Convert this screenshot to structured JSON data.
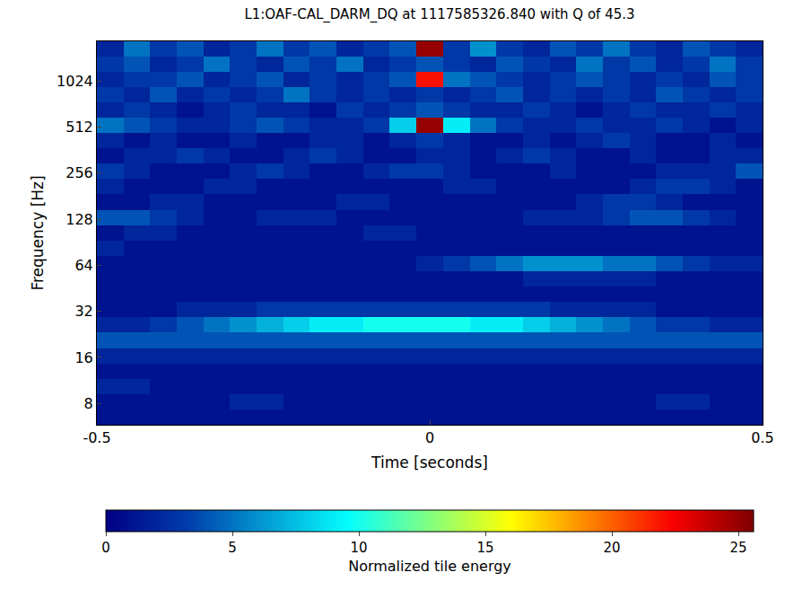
{
  "chart_data": {
    "type": "heatmap",
    "title": "L1:OAF-CAL_DARM_DQ at 1117585326.840 with Q of 45.3",
    "x_label": "Time [seconds]",
    "y_label": "Frequency [Hz]",
    "x": [
      -0.5,
      -0.46,
      -0.42,
      -0.38,
      -0.34,
      -0.3,
      -0.26,
      -0.22,
      -0.18,
      -0.14,
      -0.1,
      -0.06,
      -0.02,
      0.02,
      0.06,
      0.1,
      0.14,
      0.18,
      0.22,
      0.26,
      0.3,
      0.34,
      0.38,
      0.42,
      0.46,
      0.5
    ],
    "y": [
      5.8,
      7.3,
      9.2,
      11.6,
      14.6,
      18.4,
      23.2,
      29.2,
      36.8,
      46.4,
      58.5,
      73.7,
      92.8,
      117,
      147,
      186,
      234,
      295,
      371,
      468,
      589,
      743,
      936,
      1179,
      1485,
      1860
    ],
    "z": [
      [
        1,
        1,
        1,
        1,
        1,
        1,
        1,
        1,
        1,
        1,
        1,
        1,
        1,
        1,
        1,
        1,
        1,
        1,
        1,
        1,
        1,
        1,
        1,
        1,
        1
      ],
      [
        1,
        1,
        1,
        1,
        1,
        2,
        2,
        1,
        1,
        1,
        1,
        1,
        1,
        1,
        1,
        1,
        1,
        1,
        1,
        1,
        1,
        2,
        2,
        1,
        1
      ],
      [
        2,
        2,
        1,
        1,
        1,
        1,
        1,
        1,
        1,
        1,
        1,
        1,
        1,
        1,
        1,
        1,
        1,
        1,
        1,
        1,
        1,
        1,
        1,
        1,
        1
      ],
      [
        1,
        1,
        1,
        1,
        1,
        1,
        1,
        1,
        1,
        1,
        1,
        1,
        1,
        1,
        1,
        1,
        1,
        1,
        1,
        1,
        1,
        1,
        1,
        1,
        1
      ],
      [
        2,
        2,
        2,
        2,
        2,
        2,
        2,
        2,
        2,
        2,
        2,
        2,
        2,
        2,
        2,
        2,
        2,
        2,
        2,
        2,
        2,
        2,
        2,
        2,
        2
      ],
      [
        4,
        4,
        4,
        4,
        4,
        4,
        4,
        4,
        4,
        4,
        4,
        4,
        4,
        4,
        4,
        4,
        4,
        4,
        4,
        4,
        4,
        4,
        4,
        4,
        4
      ],
      [
        2,
        2,
        3,
        4,
        5,
        6,
        7,
        8,
        9,
        9,
        10,
        10,
        10,
        10,
        9,
        9,
        8,
        7,
        6,
        5,
        4,
        3,
        3,
        2,
        2
      ],
      [
        1,
        1,
        1,
        2,
        2,
        2,
        3,
        3,
        3,
        3,
        3,
        3,
        3,
        3,
        3,
        3,
        3,
        2,
        2,
        2,
        2,
        1,
        1,
        1,
        1
      ],
      [
        1,
        1,
        1,
        1,
        1,
        1,
        1,
        1,
        1,
        1,
        1,
        1,
        1,
        1,
        1,
        1,
        1,
        1,
        1,
        1,
        1,
        1,
        1,
        1,
        1
      ],
      [
        1,
        1,
        1,
        1,
        1,
        1,
        1,
        1,
        1,
        1,
        1,
        1,
        1,
        1,
        1,
        1,
        2,
        2,
        2,
        2,
        2,
        1,
        1,
        1,
        1
      ],
      [
        1,
        1,
        1,
        1,
        1,
        1,
        1,
        1,
        1,
        1,
        1,
        1,
        2,
        3,
        4,
        5,
        6,
        6,
        6,
        5,
        5,
        4,
        3,
        2,
        2
      ],
      [
        2,
        1,
        1,
        1,
        1,
        1,
        1,
        1,
        1,
        1,
        1,
        1,
        1,
        1,
        1,
        1,
        1,
        1,
        1,
        1,
        1,
        1,
        1,
        1,
        1
      ],
      [
        1,
        2,
        2,
        1,
        1,
        1,
        1,
        1,
        1,
        1,
        2,
        2,
        1,
        1,
        1,
        1,
        1,
        1,
        1,
        1,
        1,
        1,
        1,
        1,
        1
      ],
      [
        4,
        4,
        3,
        2,
        1,
        1,
        2,
        2,
        2,
        1,
        1,
        1,
        1,
        1,
        1,
        1,
        2,
        2,
        2,
        3,
        4,
        4,
        3,
        2,
        1
      ],
      [
        1,
        1,
        2,
        2,
        1,
        1,
        1,
        1,
        1,
        2,
        2,
        1,
        1,
        1,
        1,
        1,
        1,
        1,
        2,
        3,
        3,
        2,
        1,
        1,
        1
      ],
      [
        2,
        1,
        1,
        1,
        2,
        2,
        1,
        1,
        1,
        1,
        1,
        1,
        1,
        2,
        2,
        1,
        1,
        1,
        1,
        1,
        2,
        3,
        3,
        2,
        1
      ],
      [
        3,
        2,
        1,
        1,
        1,
        2,
        3,
        2,
        1,
        1,
        2,
        3,
        3,
        2,
        1,
        1,
        1,
        2,
        1,
        1,
        1,
        2,
        2,
        2,
        4
      ],
      [
        1,
        2,
        2,
        3,
        2,
        1,
        1,
        2,
        3,
        2,
        1,
        1,
        2,
        2,
        1,
        2,
        3,
        2,
        1,
        1,
        2,
        1,
        1,
        2,
        2
      ],
      [
        2,
        1,
        2,
        1,
        1,
        2,
        1,
        1,
        2,
        2,
        1,
        2,
        3,
        2,
        1,
        1,
        2,
        1,
        2,
        3,
        2,
        1,
        1,
        2,
        1
      ],
      [
        5,
        4,
        3,
        2,
        2,
        3,
        4,
        3,
        2,
        2,
        3,
        8,
        25,
        9,
        5,
        3,
        2,
        2,
        3,
        2,
        2,
        3,
        2,
        1,
        2
      ],
      [
        2,
        3,
        2,
        1,
        2,
        3,
        2,
        2,
        1,
        3,
        2,
        3,
        4,
        3,
        2,
        2,
        3,
        2,
        1,
        2,
        3,
        2,
        2,
        3,
        2
      ],
      [
        3,
        2,
        4,
        2,
        3,
        2,
        3,
        5,
        3,
        2,
        3,
        2,
        3,
        2,
        3,
        4,
        2,
        3,
        2,
        3,
        2,
        4,
        3,
        2,
        3
      ],
      [
        2,
        3,
        3,
        4,
        2,
        3,
        4,
        2,
        3,
        2,
        3,
        4,
        22,
        5,
        4,
        3,
        2,
        3,
        4,
        3,
        2,
        3,
        2,
        4,
        3
      ],
      [
        3,
        4,
        2,
        3,
        5,
        3,
        2,
        4,
        3,
        5,
        2,
        3,
        4,
        3,
        2,
        4,
        3,
        2,
        5,
        3,
        4,
        2,
        3,
        5,
        3
      ],
      [
        2,
        5,
        3,
        4,
        2,
        3,
        5,
        3,
        4,
        2,
        3,
        4,
        25,
        3,
        6,
        3,
        2,
        4,
        3,
        5,
        3,
        2,
        4,
        3,
        2
      ]
    ],
    "xlim": [
      -0.5,
      0.5
    ],
    "xticks": [
      -0.5,
      0,
      0.5
    ],
    "ylim": [
      5.8,
      1860
    ],
    "yticks": [
      8,
      16,
      32,
      64,
      128,
      256,
      512,
      1024
    ],
    "log": "y",
    "grid": false,
    "color": "Jet",
    "colorbar": {
      "label": "Normalized tile energy",
      "range": [
        0,
        25.6
      ],
      "ticks": [
        0,
        5,
        10,
        15,
        20,
        25
      ]
    }
  }
}
